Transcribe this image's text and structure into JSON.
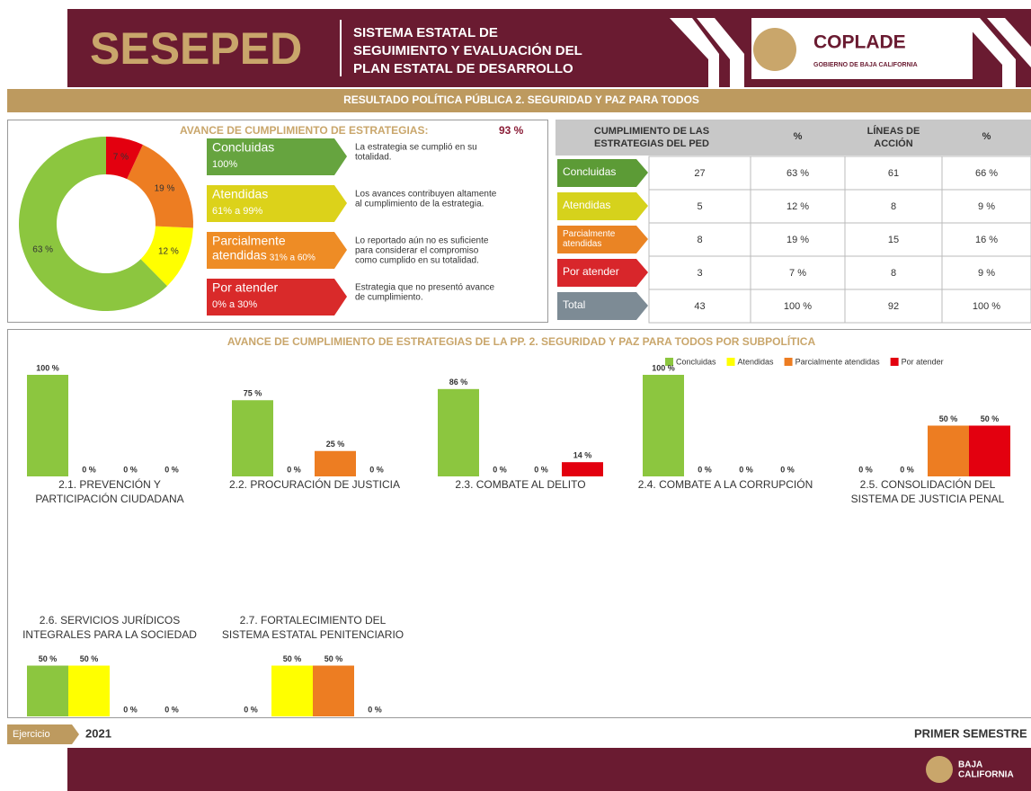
{
  "header": {
    "brand": "SESEPED",
    "system": [
      "SISTEMA ESTATAL DE",
      "SEGUIMIENTO Y EVALUACIÓN DEL",
      "PLAN ESTATAL DE DESARROLLO"
    ],
    "org": "COPLADE",
    "org_sub": "GOBIERNO DE BAJA CALIFORNIA"
  },
  "banner": "RESULTADO POLÍTICA PÚBLICA 2. SEGURIDAD Y PAZ PARA TODOS",
  "legend_boxes": [
    {
      "name": [
        "Concluidas"
      ],
      "range": "100%",
      "description": [
        "La estrategia se cumplió en su",
        "totalidad."
      ],
      "color": "#66a43f"
    },
    {
      "name": [
        "Atendidas"
      ],
      "range": "61% a 99%",
      "description": [
        "Los avances contribuyen altamente",
        "al cumplimiento de la estrategia."
      ],
      "color": "#dcd21a"
    },
    {
      "name": [
        "Parcialmente",
        "atendidas"
      ],
      "range": "31% a 60%",
      "description": [
        "Lo reportado aún no es suficiente",
        "para considerar el compromiso",
        "como cumplido en su totalidad."
      ],
      "color": "#ee8c25"
    },
    {
      "name": [
        "Por atender"
      ],
      "range": "0% a 30%",
      "description": [
        "Estrategia que no presentó avance",
        "de cumplimiento."
      ],
      "color": "#d92a2a"
    }
  ],
  "table": {
    "headers": [
      [
        "CUMPLIMIENTO DE LAS",
        "ESTRATEGIAS DEL PED"
      ],
      [
        "%"
      ],
      [
        "LÍNEAS DE",
        "ACCIÓN"
      ],
      [
        "%"
      ]
    ],
    "rows": [
      {
        "label": [
          "Concluidas"
        ],
        "color": "#5c9b36",
        "cells": [
          "27",
          "63 %",
          "61",
          "66 %"
        ]
      },
      {
        "label": [
          "Atendidas"
        ],
        "color": "#d6d21c",
        "cells": [
          "5",
          "12 %",
          "8",
          "9 %"
        ]
      },
      {
        "label": [
          "Parcialmente",
          "atendidas"
        ],
        "color": "#ea8424",
        "cells": [
          "8",
          "19 %",
          "15",
          "16 %"
        ]
      },
      {
        "label": [
          "Por atender"
        ],
        "color": "#d8262b",
        "cells": [
          "3",
          "7 %",
          "8",
          "9 %"
        ]
      },
      {
        "label": [
          "Total"
        ],
        "color": "#7d8b95",
        "cells": [
          "43",
          "100 %",
          "92",
          "100 %"
        ]
      }
    ]
  },
  "subpolicies": {
    "title": "AVANCE DE CUMPLIMIENTO DE ESTRATEGIAS DE LA PP. 2. SEGURIDAD Y PAZ PARA TODOS POR SUBPOLÍTICA",
    "legend": [
      {
        "name": "Concluidas",
        "color": "#8cc63f"
      },
      {
        "name": "Atendidas",
        "color": "#ffff00"
      },
      {
        "name": "Parcialmente atendidas",
        "color": "#ed7d22"
      },
      {
        "name": "Por atender",
        "color": "#e3000f"
      }
    ]
  },
  "chart_data": [
    {
      "type": "pie",
      "title": "AVANCE DE CUMPLIMIENTO DE ESTRATEGIAS:",
      "total_label": "93 %",
      "categories": [
        "Concluidas",
        "Atendidas",
        "Parcialmente atendidas",
        "Por atender"
      ],
      "values": [
        63,
        12,
        19,
        7
      ],
      "value_labels": [
        "63 %",
        "12 %",
        "19 %",
        "7 %"
      ],
      "colors": [
        "#8cc63f",
        "#ffff00",
        "#ed7d22",
        "#e3000f"
      ]
    },
    {
      "type": "bar",
      "title": [
        "2.1. PREVENCIÓN Y",
        "PARTICIPACIÓN CIUDADANA"
      ],
      "values": [
        100,
        0,
        0,
        0
      ],
      "value_labels": [
        "100 %",
        "0 %",
        "0 %",
        "0 %"
      ]
    },
    {
      "type": "bar",
      "title": [
        "2.2. PROCURACIÓN DE JUSTICIA"
      ],
      "values": [
        75,
        0,
        25,
        0
      ],
      "value_labels": [
        "75 %",
        "0 %",
        "25 %",
        "0 %"
      ]
    },
    {
      "type": "bar",
      "title": [
        "2.3. COMBATE AL DELITO"
      ],
      "values": [
        86,
        0,
        0,
        14
      ],
      "value_labels": [
        "86 %",
        "0 %",
        "0 %",
        "14 %"
      ]
    },
    {
      "type": "bar",
      "title": [
        "2.4. COMBATE A LA CORRUPCIÓN"
      ],
      "values": [
        100,
        0,
        0,
        0
      ],
      "value_labels": [
        "100 %",
        "0 %",
        "0 %",
        "0 %"
      ]
    },
    {
      "type": "bar",
      "title": [
        "2.5. CONSOLIDACIÓN DEL",
        "SISTEMA DE JUSTICIA PENAL"
      ],
      "values": [
        0,
        0,
        50,
        50
      ],
      "value_labels": [
        "0 %",
        "0 %",
        "50 %",
        "50 %"
      ]
    },
    {
      "type": "bar",
      "title": [
        "2.6. SERVICIOS JURÍDICOS",
        "INTEGRALES PARA LA SOCIEDAD"
      ],
      "values": [
        50,
        50,
        0,
        0
      ],
      "value_labels": [
        "50 %",
        "50 %",
        "0 %",
        "0 %"
      ]
    },
    {
      "type": "bar",
      "title": [
        "2.7. FORTALECIMIENTO DEL",
        "SISTEMA ESTATAL PENITENCIARIO"
      ],
      "values": [
        0,
        50,
        50,
        0
      ],
      "value_labels": [
        "0 %",
        "50 %",
        "50 %",
        "0 %"
      ]
    }
  ],
  "footer": {
    "label": "Ejercicio",
    "year": "2021",
    "period": "PRIMER SEMESTRE",
    "state": [
      "BAJA",
      "CALIFORNIA"
    ]
  }
}
